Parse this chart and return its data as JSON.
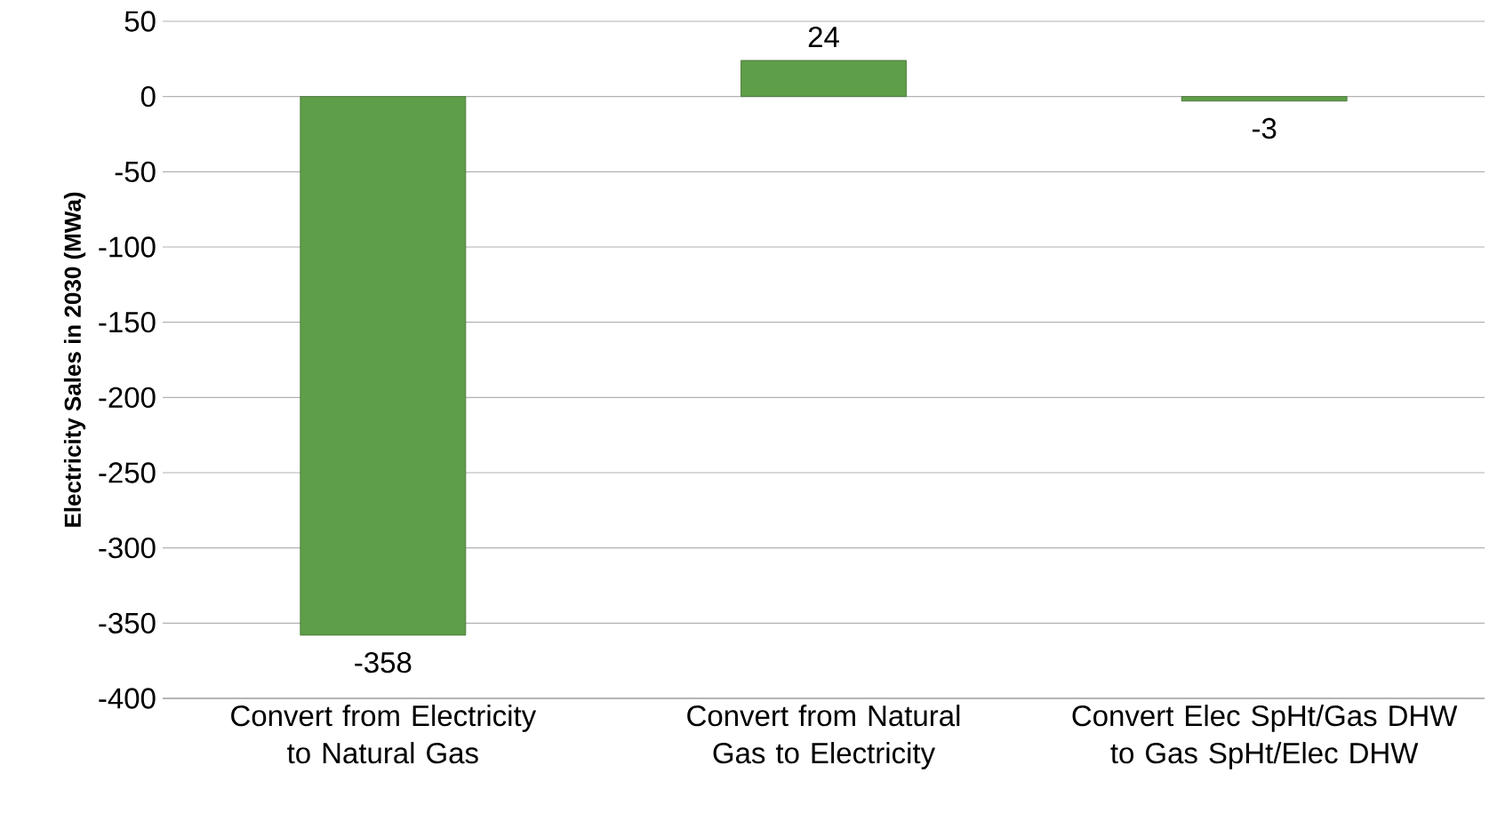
{
  "chart_data": {
    "type": "bar",
    "ylabel": "Electricity Sales in 2030 (MWa)",
    "categories": [
      "Convert from Electricity to Natural Gas",
      "Convert from Natural Gas to Electricity",
      "Convert Elec SpHt/Gas DHW to Gas SpHt/Elec DHW"
    ],
    "values": [
      -358,
      24,
      -3
    ],
    "value_labels": [
      "-358",
      "24",
      "-3"
    ],
    "color": "#5e9e48",
    "grid": "y",
    "ylim": [
      -400,
      50
    ],
    "yticks": [
      -400,
      -350,
      -300,
      -250,
      -200,
      -150,
      -100,
      -50,
      0,
      50
    ]
  }
}
